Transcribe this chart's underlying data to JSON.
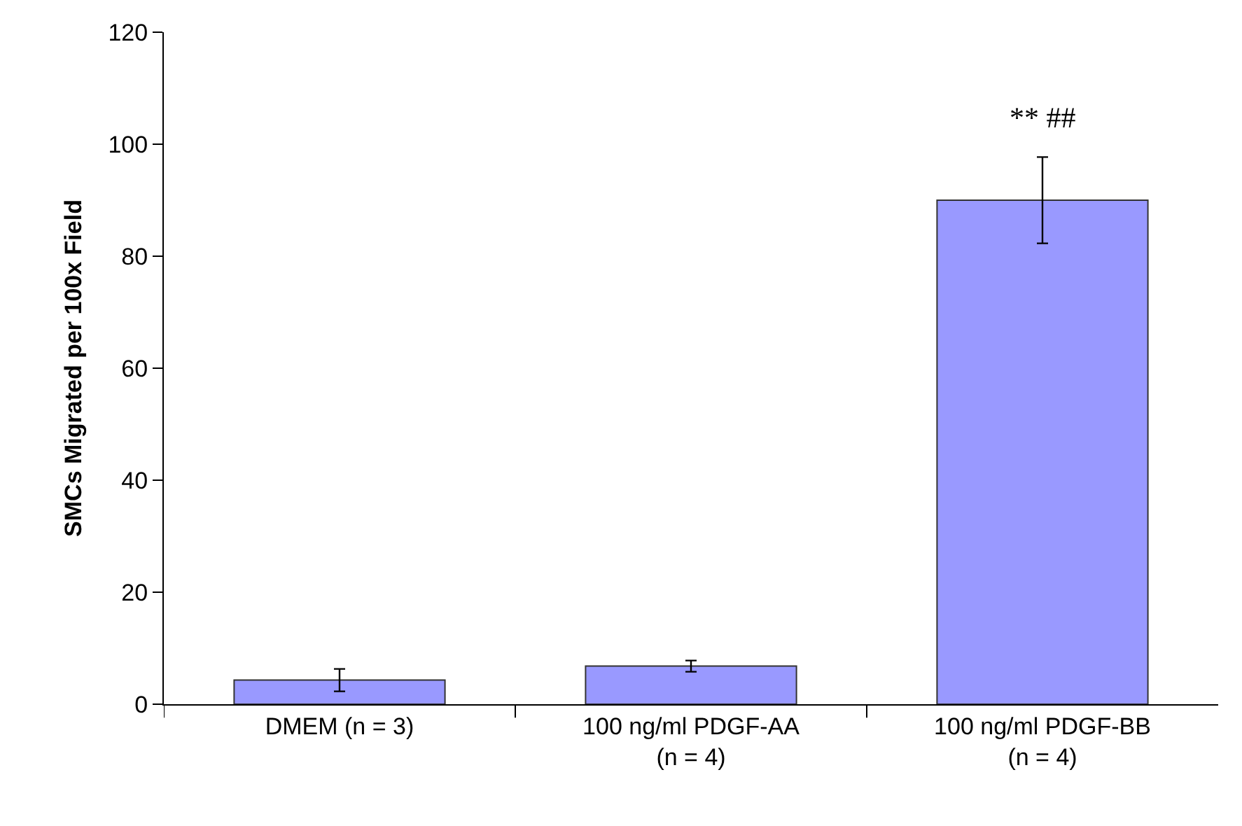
{
  "chart_data": {
    "type": "bar",
    "ylabel": "SMCs Migrated per 100x Field",
    "categories": [
      "DMEM (n = 3)",
      "100 ng/ml PDGF-AA (n = 4)",
      "100 ng/ml PDGF-BB (n = 4)"
    ],
    "values": [
      4.3,
      6.8,
      90
    ],
    "errors": [
      2,
      1,
      7.7
    ],
    "color": "#9999ff",
    "ylim": [
      0,
      120
    ],
    "yticks": [
      0,
      20,
      40,
      60,
      80,
      100,
      120
    ],
    "grid": false,
    "legend": false,
    "annotations": [
      {
        "text": "** ##",
        "x": "100 ng/ml PDGF-BB (n = 4)",
        "y": 97.7
      }
    ]
  }
}
